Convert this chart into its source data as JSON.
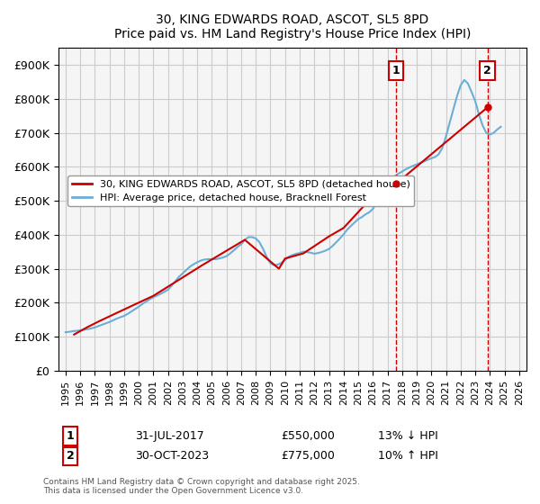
{
  "title": "30, KING EDWARDS ROAD, ASCOT, SL5 8PD",
  "subtitle": "Price paid vs. HM Land Registry's House Price Index (HPI)",
  "legend_line1": "30, KING EDWARDS ROAD, ASCOT, SL5 8PD (detached house)",
  "legend_line2": "HPI: Average price, detached house, Bracknell Forest",
  "footer": "Contains HM Land Registry data © Crown copyright and database right 2025.\nThis data is licensed under the Open Government Licence v3.0.",
  "sale1_label": "1",
  "sale1_date": "31-JUL-2017",
  "sale1_price": "£550,000",
  "sale1_hpi": "13% ↓ HPI",
  "sale2_label": "2",
  "sale2_date": "30-OCT-2023",
  "sale2_price": "£775,000",
  "sale2_hpi": "10% ↑ HPI",
  "sale1_x": 2017.58,
  "sale1_y": 550000,
  "sale2_x": 2023.83,
  "sale2_y": 775000,
  "hpi_color": "#6baed6",
  "price_color": "#cc0000",
  "bg_color": "#f5f5f5",
  "grid_color": "#cccccc",
  "ylim": [
    0,
    950000
  ],
  "xlim": [
    1994.5,
    2026.5
  ],
  "yticks": [
    0,
    100000,
    200000,
    300000,
    400000,
    500000,
    600000,
    700000,
    800000,
    900000
  ],
  "ytick_labels": [
    "£0",
    "£100K",
    "£200K",
    "£300K",
    "£400K",
    "£500K",
    "£600K",
    "£700K",
    "£800K",
    "£900K"
  ],
  "xticks": [
    1995,
    1996,
    1997,
    1998,
    1999,
    2000,
    2001,
    2002,
    2003,
    2004,
    2005,
    2006,
    2007,
    2008,
    2009,
    2010,
    2011,
    2012,
    2013,
    2014,
    2015,
    2016,
    2017,
    2018,
    2019,
    2020,
    2021,
    2022,
    2023,
    2024,
    2025,
    2026
  ],
  "hpi_x": [
    1995.0,
    1995.25,
    1995.5,
    1995.75,
    1996.0,
    1996.25,
    1996.5,
    1996.75,
    1997.0,
    1997.25,
    1997.5,
    1997.75,
    1998.0,
    1998.25,
    1998.5,
    1998.75,
    1999.0,
    1999.25,
    1999.5,
    1999.75,
    2000.0,
    2000.25,
    2000.5,
    2000.75,
    2001.0,
    2001.25,
    2001.5,
    2001.75,
    2002.0,
    2002.25,
    2002.5,
    2002.75,
    2003.0,
    2003.25,
    2003.5,
    2003.75,
    2004.0,
    2004.25,
    2004.5,
    2004.75,
    2005.0,
    2005.25,
    2005.5,
    2005.75,
    2006.0,
    2006.25,
    2006.5,
    2006.75,
    2007.0,
    2007.25,
    2007.5,
    2007.75,
    2008.0,
    2008.25,
    2008.5,
    2008.75,
    2009.0,
    2009.25,
    2009.5,
    2009.75,
    2010.0,
    2010.25,
    2010.5,
    2010.75,
    2011.0,
    2011.25,
    2011.5,
    2011.75,
    2012.0,
    2012.25,
    2012.5,
    2012.75,
    2013.0,
    2013.25,
    2013.5,
    2013.75,
    2014.0,
    2014.25,
    2014.5,
    2014.75,
    2015.0,
    2015.25,
    2015.5,
    2015.75,
    2016.0,
    2016.25,
    2016.5,
    2016.75,
    2017.0,
    2017.25,
    2017.5,
    2017.75,
    2018.0,
    2018.25,
    2018.5,
    2018.75,
    2019.0,
    2019.25,
    2019.5,
    2019.75,
    2020.0,
    2020.25,
    2020.5,
    2020.75,
    2021.0,
    2021.25,
    2021.5,
    2021.75,
    2022.0,
    2022.25,
    2022.5,
    2022.75,
    2023.0,
    2023.25,
    2023.5,
    2023.75,
    2024.0,
    2024.25,
    2024.5,
    2024.75
  ],
  "hpi_y": [
    113000,
    114000,
    116000,
    117000,
    118000,
    120000,
    122000,
    124000,
    127000,
    131000,
    135000,
    139000,
    143000,
    148000,
    153000,
    157000,
    161000,
    167000,
    174000,
    181000,
    188000,
    196000,
    203000,
    210000,
    216000,
    221000,
    226000,
    232000,
    238000,
    250000,
    263000,
    276000,
    286000,
    296000,
    306000,
    313000,
    319000,
    324000,
    327000,
    328000,
    328000,
    328000,
    330000,
    333000,
    337000,
    345000,
    354000,
    364000,
    372000,
    385000,
    393000,
    393000,
    389000,
    378000,
    358000,
    334000,
    316000,
    310000,
    312000,
    317000,
    325000,
    335000,
    340000,
    344000,
    346000,
    350000,
    349000,
    347000,
    344000,
    346000,
    349000,
    353000,
    358000,
    367000,
    378000,
    389000,
    401000,
    415000,
    426000,
    436000,
    446000,
    452000,
    460000,
    466000,
    476000,
    493000,
    511000,
    531000,
    549000,
    563000,
    572000,
    580000,
    586000,
    593000,
    598000,
    603000,
    607000,
    612000,
    616000,
    621000,
    625000,
    629000,
    637000,
    656000,
    690000,
    730000,
    769000,
    808000,
    840000,
    856000,
    845000,
    820000,
    793000,
    754000,
    722000,
    700000,
    695000,
    700000,
    710000,
    718000
  ],
  "price_x": [
    1995.58,
    1996.5,
    1997.33,
    1999.75,
    2001.0,
    2004.33,
    2007.25,
    2009.58,
    2010.0,
    2011.25,
    2013.0,
    2014.0,
    2014.75,
    2015.5,
    2016.0,
    2017.58,
    2023.83
  ],
  "price_y": [
    106000,
    128000,
    146000,
    195000,
    220000,
    310000,
    385000,
    300000,
    330000,
    345000,
    395000,
    420000,
    455000,
    490000,
    520000,
    550000,
    775000
  ]
}
